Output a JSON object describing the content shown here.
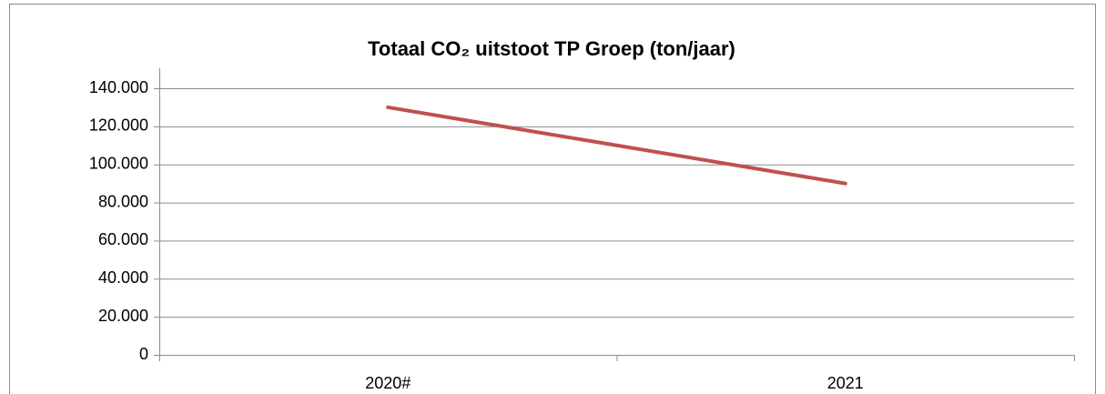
{
  "chart_data": {
    "type": "line",
    "title": "Totaal CO₂ uitstoot TP Groep (ton/jaar)",
    "categories": [
      "2020#",
      "2021"
    ],
    "series": [
      {
        "name": "Totaal CO₂ uitstoot",
        "color": "#c0504d",
        "values": [
          130000,
          90000
        ]
      }
    ],
    "ylim": [
      0,
      140000
    ],
    "yticks": [
      0,
      {
        "value": 20000,
        "label": "20.000"
      },
      {
        "value": 40000,
        "label": "40.000"
      },
      {
        "value": 60000,
        "label": "60.000"
      },
      {
        "value": 80000,
        "label": "80.000"
      },
      {
        "value": 100000,
        "label": "100.000"
      },
      {
        "value": 120000,
        "label": "120.000"
      },
      {
        "value": 140000,
        "label": "140.000"
      }
    ],
    "grid": true
  }
}
